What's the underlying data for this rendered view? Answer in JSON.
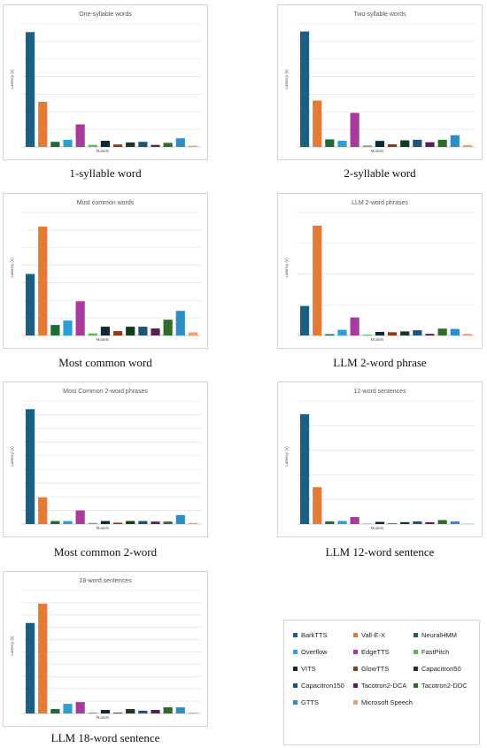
{
  "colors": {
    "BarkTTS": "#1d5f82",
    "Vall-E-X": "#e37b34",
    "NeuralHMM": "#1e6b35",
    "Overflow": "#2a9fd6",
    "EdgeTTS": "#a73b9b",
    "FastPitch": "#5cb85c",
    "VITS": "#0e2a3a",
    "GlowTTS": "#8b3a16",
    "Capacitron50": "#153a22",
    "Capacitron150": "#1b5577",
    "Tacotron2-DCA": "#5a1e56",
    "Tacotron2-DDC": "#2f6b2a",
    "GTTS": "#2b8ec7",
    "Microsoft Speech": "#f0a070"
  },
  "legend": {
    "items": [
      "BarkTTS",
      "Vall-E-X",
      "NeuralHMM",
      "Overflow",
      "EdgeTTS",
      "FastPitch",
      "VITS",
      "GlowTTS",
      "Capacitron50",
      "Capacitron150",
      "Tacotron2-DCA",
      "Tacotron2-DDC",
      "GTTS",
      "Microsoft Speech"
    ]
  },
  "chart_data": [
    {
      "type": "bar",
      "title": "One-syllable words",
      "caption": "1-syllable word",
      "xlabel": "Models",
      "ylabel": "Latency (s)",
      "categories": [
        "BarkTTS",
        "Vall-E-X",
        "NeuralHMM",
        "Overflow",
        "EdgeTTS",
        "FastPitch",
        "VITS",
        "GlowTTS",
        "Capacitron50",
        "Capacitron150",
        "Tacotron2-DCA",
        "Tacotron2-DDC",
        "GTTS",
        "Microsoft Speech"
      ],
      "values": [
        5.6,
        2.2,
        0.25,
        0.35,
        1.1,
        0.1,
        0.3,
        0.12,
        0.22,
        0.25,
        0.1,
        0.2,
        0.42,
        0.06
      ],
      "ylim": [
        0,
        6
      ],
      "gridlines": 7,
      "grid": true,
      "legend": "none"
    },
    {
      "type": "bar",
      "title": "Two-syllable words",
      "caption": "2-syllable word",
      "xlabel": "Models",
      "ylabel": "Latency (s)",
      "categories": [
        "BarkTTS",
        "Vall-E-X",
        "NeuralHMM",
        "Overflow",
        "EdgeTTS",
        "FastPitch",
        "VITS",
        "GlowTTS",
        "Capacitron50",
        "Capacitron150",
        "Tacotron2-DCA",
        "Tacotron2-DDC",
        "GTTS",
        "Microsoft Speech"
      ],
      "values": [
        6.1,
        2.45,
        0.4,
        0.33,
        1.8,
        0.08,
        0.32,
        0.14,
        0.35,
        0.38,
        0.25,
        0.38,
        0.62,
        0.1
      ],
      "ylim": [
        0,
        6.5
      ],
      "gridlines": 7,
      "grid": true,
      "legend": "none"
    },
    {
      "type": "bar",
      "title": "Most common words",
      "caption": "Most common word",
      "xlabel": "Models",
      "ylabel": "Latency (s)",
      "categories": [
        "BarkTTS",
        "Vall-E-X",
        "NeuralHMM",
        "Overflow",
        "EdgeTTS",
        "FastPitch",
        "VITS",
        "GlowTTS",
        "Capacitron50",
        "Capacitron150",
        "Tacotron2-DCA",
        "Tacotron2-DDC",
        "GTTS",
        "Microsoft Speech"
      ],
      "values": [
        3.5,
        6.2,
        0.6,
        0.85,
        1.95,
        0.12,
        0.5,
        0.25,
        0.5,
        0.5,
        0.4,
        0.9,
        1.4,
        0.18
      ],
      "ylim": [
        0,
        7
      ],
      "gridlines": 7,
      "grid": true,
      "legend": "none"
    },
    {
      "type": "bar",
      "title": "LLM 2-word phrases",
      "caption": "LLM 2-word phrase",
      "xlabel": "Models",
      "ylabel": "Latency (s)",
      "categories": [
        "BarkTTS",
        "Vall-E-X",
        "NeuralHMM",
        "Overflow",
        "EdgeTTS",
        "FastPitch",
        "VITS",
        "GlowTTS",
        "Capacitron50",
        "Capacitron150",
        "Tacotron2-DCA",
        "Tacotron2-DDC",
        "GTTS",
        "Microsoft Speech"
      ],
      "values": [
        1.8,
        6.7,
        0.08,
        0.35,
        1.1,
        0.05,
        0.22,
        0.2,
        0.25,
        0.32,
        0.1,
        0.42,
        0.4,
        0.1
      ],
      "ylim": [
        0,
        7.5
      ],
      "gridlines": 4,
      "grid": true,
      "legend": "none"
    },
    {
      "type": "bar",
      "title": "Most Common 2-word phrases",
      "caption": "Most common 2-word",
      "xlabel": "Models",
      "ylabel": "Latency (s)",
      "categories": [
        "BarkTTS",
        "Vall-E-X",
        "NeuralHMM",
        "Overflow",
        "EdgeTTS",
        "FastPitch",
        "VITS",
        "GlowTTS",
        "Capacitron50",
        "Capacitron150",
        "Tacotron2-DCA",
        "Tacotron2-DDC",
        "GTTS",
        "Microsoft Speech"
      ],
      "values": [
        8.4,
        1.95,
        0.22,
        0.22,
        1.0,
        0.08,
        0.22,
        0.1,
        0.22,
        0.22,
        0.18,
        0.18,
        0.65,
        0.08
      ],
      "ylim": [
        0,
        9
      ],
      "gridlines": 9,
      "grid": true,
      "legend": "none"
    },
    {
      "type": "bar",
      "title": "12-word sentences",
      "caption": "LLM 12-word sentence",
      "xlabel": "Models",
      "ylabel": "Latency (s)",
      "categories": [
        "BarkTTS",
        "Vall-E-X",
        "NeuralHMM",
        "Overflow",
        "EdgeTTS",
        "FastPitch",
        "VITS",
        "GlowTTS",
        "Capacitron50",
        "Capacitron150",
        "Tacotron2-DCA",
        "Tacotron2-DDC",
        "GTTS",
        "Microsoft Speech"
      ],
      "values": [
        12.5,
        4.2,
        0.3,
        0.35,
        0.8,
        0.05,
        0.25,
        0.08,
        0.22,
        0.3,
        0.2,
        0.45,
        0.3,
        0.05
      ],
      "ylim": [
        0,
        14
      ],
      "gridlines": 5,
      "grid": true,
      "legend": "none"
    },
    {
      "type": "bar",
      "title": "18-word sentences",
      "caption": "LLM 18-word sentence",
      "xlabel": "Models",
      "ylabel": "Latency (s)",
      "categories": [
        "BarkTTS",
        "Vall-E-X",
        "NeuralHMM",
        "Overflow",
        "EdgeTTS",
        "FastPitch",
        "VITS",
        "GlowTTS",
        "Capacitron50",
        "Capacitron150",
        "Tacotron2-DCA",
        "Tacotron2-DDC",
        "GTTS",
        "Microsoft Speech"
      ],
      "values": [
        10.3,
        12.5,
        0.5,
        1.1,
        1.3,
        0.1,
        0.4,
        0.1,
        0.5,
        0.32,
        0.4,
        0.7,
        0.7,
        0.1
      ],
      "ylim": [
        0,
        14
      ],
      "gridlines": 10,
      "grid": true,
      "legend": "none"
    }
  ]
}
